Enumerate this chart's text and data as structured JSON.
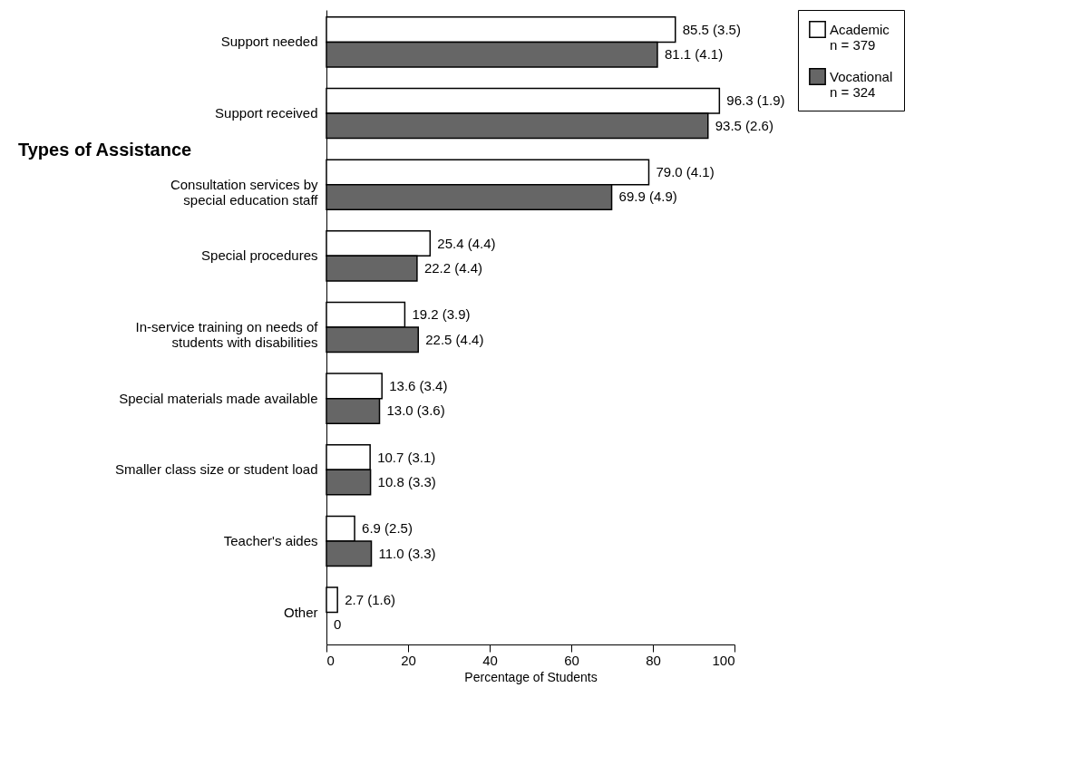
{
  "chart_data": {
    "type": "bar",
    "orientation": "horizontal",
    "xlabel": "Percentage of Students",
    "categories": [
      "Support needed",
      "Support received",
      "Consultation services by special education staff",
      "Special procedures",
      "In-service training on needs of students with disabilities",
      "Special materials made available",
      "Smaller class size or student load",
      "Teacher's aides",
      "Other"
    ],
    "series": [
      {
        "name": "Academic",
        "color": "#ffffff",
        "values": [
          85.5,
          96.3,
          79.0,
          25.4,
          19.2,
          13.6,
          10.7,
          6.9,
          2.7
        ],
        "value_labels": [
          "85.5 (3.5)",
          "96.3 (1.9)",
          "79.0 (4.1)",
          "25.4 (4.4)",
          "19.2 (3.9)",
          "13.6 (3.4)",
          "10.7 (3.1)",
          "6.9 (2.5)",
          "2.7 (1.6)"
        ]
      },
      {
        "name": "Vocational",
        "color": "#666666",
        "values": [
          81.1,
          93.5,
          69.9,
          22.2,
          22.5,
          13.0,
          10.8,
          11.0,
          0
        ],
        "value_labels": [
          "81.1 (4.1)",
          "93.5 (2.6)",
          "69.9 (4.9)",
          "22.2 (4.4)",
          "22.5 (4.4)",
          "13.0 (3.6)",
          "10.8 (3.3)",
          "11.0 (3.3)",
          "0"
        ]
      }
    ],
    "xlim": [
      0,
      100
    ],
    "xticks": [
      0,
      20,
      40,
      60,
      80,
      100
    ],
    "legend": "right",
    "grid": false,
    "annotations": [
      "Types of Assistance",
      "n = 379",
      "n = 324"
    ]
  }
}
